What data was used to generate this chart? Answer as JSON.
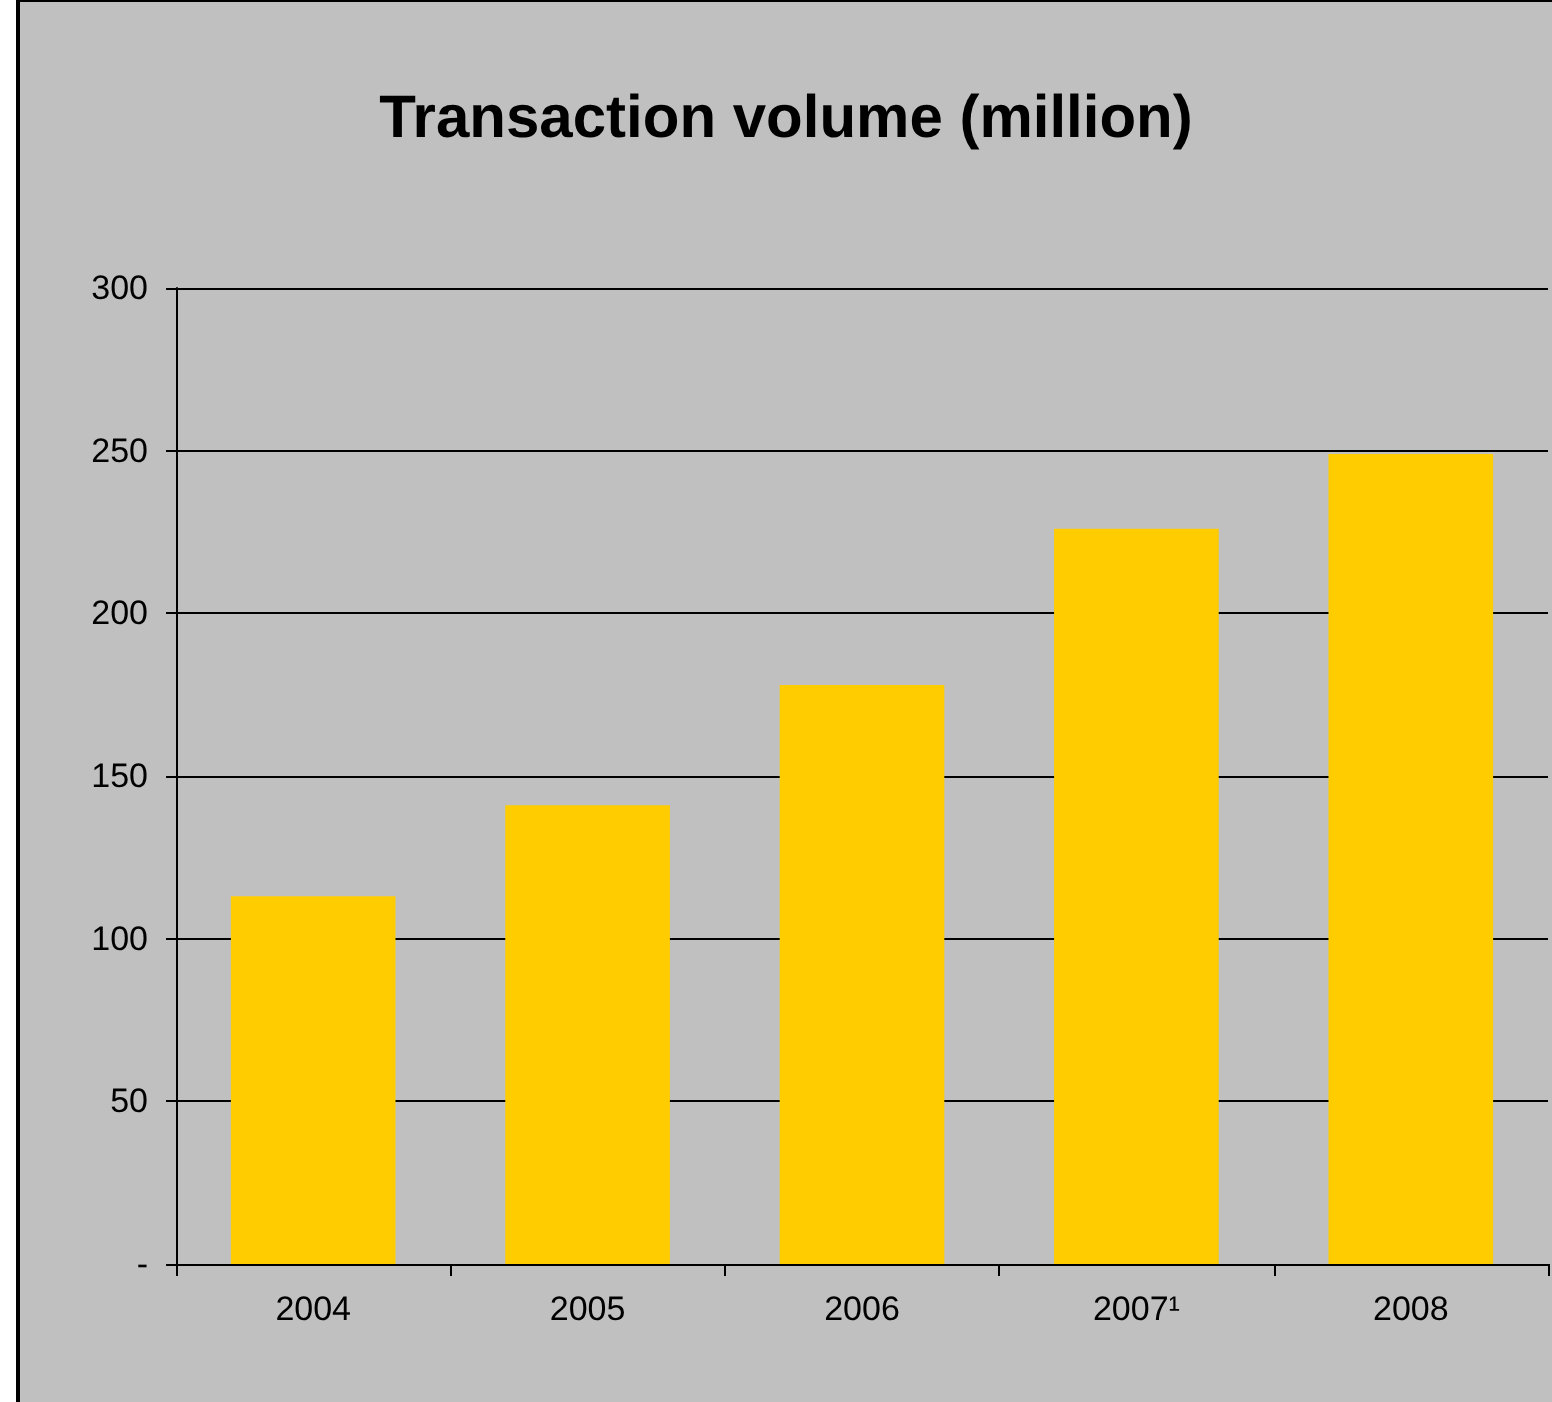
{
  "chart_data": {
    "type": "bar",
    "title": "Transaction volume (million)",
    "categories": [
      "2004",
      "2005",
      "2006",
      "2007¹",
      "2008"
    ],
    "values": [
      113,
      141,
      178,
      226,
      249
    ],
    "color": "#ffcc00",
    "ylim": [
      0,
      300
    ],
    "yticks": [
      {
        "value": 0,
        "label": "-"
      },
      50,
      100,
      150,
      200,
      250,
      300
    ],
    "grid": "y"
  }
}
